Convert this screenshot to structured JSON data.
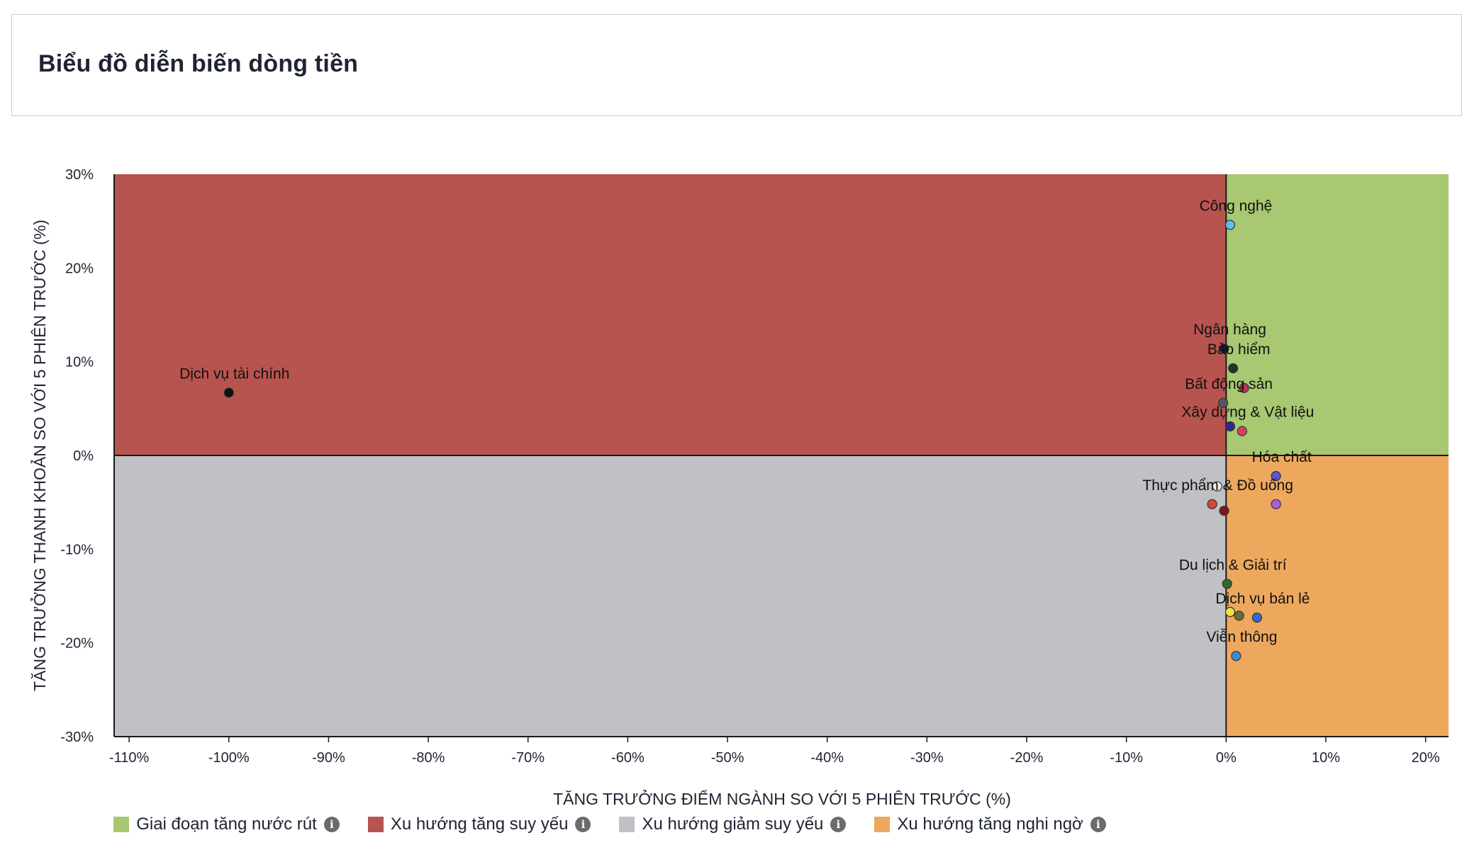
{
  "header": {
    "title": "Biểu đồ diễn biến dòng tiền"
  },
  "colors": {
    "top_right": "#a8c871",
    "top_left": "#b8544f",
    "bottom_left": "#c0c1c5",
    "bottom_right": "#eea85d"
  },
  "legend": [
    {
      "label": "Giai đoạn tăng nước rút",
      "color": "#a8c871",
      "icon": "info-icon"
    },
    {
      "label": "Xu hướng tăng suy yếu",
      "color": "#b8544f",
      "icon": "info-icon"
    },
    {
      "label": "Xu hướng giảm suy yếu",
      "color": "#c0c1c5",
      "icon": "info-icon"
    },
    {
      "label": "Xu hướng tăng nghi ngờ",
      "color": "#eea85d",
      "icon": "info-icon"
    }
  ],
  "chart_data": {
    "type": "scatter",
    "xlabel": "TĂNG TRƯỞNG ĐIỂM NGÀNH SO VỚI 5 PHIÊN TRƯỚC (%)",
    "ylabel": "TĂNG TRƯỞNG THANH KHOẢN SO VỚI 5 PHIÊN TRƯỚC (%)",
    "xlim": [
      -111.5,
      22.3
    ],
    "ylim": [
      -30,
      30
    ],
    "xticks": [
      -110,
      -100,
      -90,
      -80,
      -70,
      -60,
      -50,
      -40,
      -30,
      -20,
      -10,
      0,
      10,
      20
    ],
    "xtick_labels": [
      "-110%",
      "-100%",
      "-90%",
      "-80%",
      "-70%",
      "-60%",
      "-50%",
      "-40%",
      "-30%",
      "-20%",
      "-10%",
      "0%",
      "10%",
      "20%"
    ],
    "yticks": [
      30,
      20,
      10,
      0,
      -10,
      -20,
      -30
    ],
    "ytick_labels": [
      "30%",
      "20%",
      "10%",
      "0%",
      "-10%",
      "-20%",
      "-30%"
    ],
    "grid": false,
    "legend_position": "bottom",
    "points": [
      {
        "x": 0.4,
        "y": 24.6,
        "color": "#5bc0eb",
        "label": "Công nghệ"
      },
      {
        "x": -100.0,
        "y": 6.7,
        "color": "#111111",
        "label": "Dịch vụ tài chính"
      },
      {
        "x": -0.2,
        "y": 11.4,
        "color": "#1a1a2e",
        "label": "Ngân hàng"
      },
      {
        "x": 0.7,
        "y": 9.3,
        "color": "#1e3a1e",
        "label": "Bảo hiểm"
      },
      {
        "x": 1.8,
        "y": 7.2,
        "color": "#b83355",
        "label": ""
      },
      {
        "x": -0.3,
        "y": 5.6,
        "color": "#555566",
        "label": "Bất động sản"
      },
      {
        "x": 0.4,
        "y": 3.1,
        "color": "#2a2a88",
        "label": ""
      },
      {
        "x": 1.6,
        "y": 2.6,
        "color": "#d94060",
        "label": "Xây dựng & Vật liệu"
      },
      {
        "x": 5.0,
        "y": -2.2,
        "color": "#5a55d6",
        "label": "Hóa chất"
      },
      {
        "x": -0.9,
        "y": -3.3,
        "color": "#e8f0e0",
        "label": ""
      },
      {
        "x": 5.0,
        "y": -5.2,
        "color": "#a660d9",
        "label": ""
      },
      {
        "x": -1.4,
        "y": -5.2,
        "color": "#d8453b",
        "label": "Thực phẩm & Đồ uống"
      },
      {
        "x": -0.2,
        "y": -5.9,
        "color": "#7a1a1a",
        "label": ""
      },
      {
        "x": 0.1,
        "y": -13.7,
        "color": "#2e6b2e",
        "label": "Du lịch & Giải trí"
      },
      {
        "x": 0.4,
        "y": -16.7,
        "color": "#f0e040",
        "label": ""
      },
      {
        "x": 1.3,
        "y": -17.1,
        "color": "#6b6b3a",
        "label": ""
      },
      {
        "x": 3.1,
        "y": -17.3,
        "color": "#2f6bd6",
        "label": "Dịch vụ bán lẻ"
      },
      {
        "x": 1.0,
        "y": -21.4,
        "color": "#3b8fd0",
        "label": "Viễn thông"
      }
    ]
  }
}
